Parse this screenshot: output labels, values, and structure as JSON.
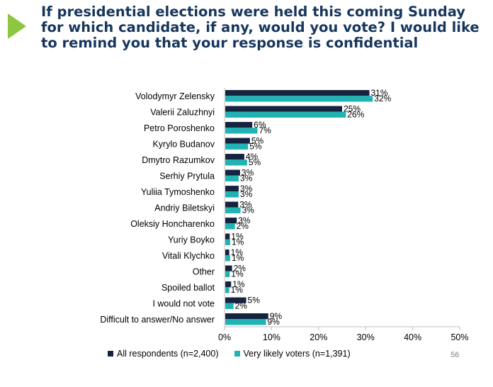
{
  "title_lines": [
    "If presidential elections were held this coming Sunday",
    "for which candidate, if any, would you vote? I would like",
    "to remind you that your response is confidential"
  ],
  "page_number": "56",
  "colors": {
    "accent_arrow": "#8dc63f",
    "title": "#17365d"
  },
  "chart_data": {
    "type": "bar",
    "orientation": "horizontal",
    "categories": [
      "Volodymyr Zelensky",
      "Valerii Zaluzhnyi",
      "Petro Poroshenko",
      "Kyrylo Budanov",
      "Dmytro Razumkov",
      "Serhiy Prytula",
      "Yuliia Tymoshenko",
      "Andriy Biletskyi",
      "Oleksiy Honcharenko",
      "Yuriy Boyko",
      "Vitali Klychko",
      "Other",
      "Spoiled ballot",
      "I would not vote",
      "Difficult to answer/No answer"
    ],
    "series": [
      {
        "name": "All respondents (n=2,400)",
        "color": "#15233f",
        "values": [
          30.8,
          25.0,
          5.9,
          5.4,
          4.2,
          3.3,
          3.0,
          2.9,
          2.6,
          1.1,
          1.0,
          1.6,
          1.4,
          4.6,
          9.3
        ],
        "labels": [
          "31%",
          "25%",
          "6%",
          "5%",
          "4%",
          "3%",
          "3%",
          "3%",
          "3%",
          "1%",
          "1%",
          "2%",
          "1%",
          "5%",
          "9%"
        ]
      },
      {
        "name": "Very likely voters (n=1,391)",
        "color": "#1fb3b3",
        "values": [
          31.5,
          25.8,
          7.0,
          5.0,
          4.8,
          3.0,
          3.0,
          3.4,
          2.2,
          1.2,
          1.2,
          1.1,
          1.0,
          1.9,
          8.8
        ],
        "labels": [
          "32%",
          "26%",
          "7%",
          "5%",
          "5%",
          "3%",
          "3%",
          "3%",
          "2%",
          "1%",
          "1%",
          "1%",
          "1%",
          "2%",
          "9%"
        ]
      }
    ],
    "xlim": [
      0,
      50
    ],
    "x_ticks": [
      0,
      10,
      20,
      30,
      40,
      50
    ],
    "x_tick_labels": [
      "0%",
      "10%",
      "20%",
      "30%",
      "40%",
      "50%"
    ],
    "gridlines": false,
    "legend_position": "bottom-left"
  }
}
